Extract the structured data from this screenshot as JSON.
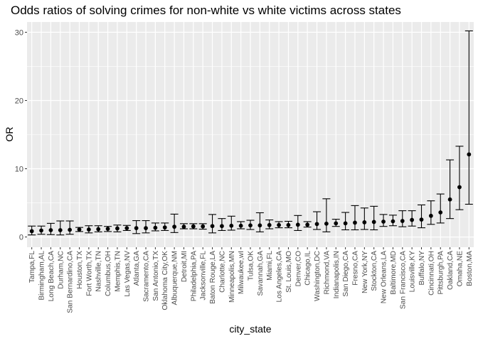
{
  "chart_data": {
    "type": "scatter",
    "subtype": "point-with-errorbars",
    "title": "Odds ratios of solving crimes for non-white vs white victims across states",
    "xlabel": "city_state",
    "ylabel": "OR",
    "ylim": [
      0,
      31.5
    ],
    "yticks": [
      0,
      10,
      20,
      30
    ],
    "grid": true,
    "legend": "none",
    "colors": {
      "panel": "#ebebeb",
      "grid_major": "#ffffff",
      "point": "#000000",
      "errorbar": "#000000"
    },
    "categories": [
      "Tampa,FL",
      "Birmingham,AL",
      "Long Beach,CA",
      "Durham,NC",
      "San Bernardino,CA",
      "Houston,TX",
      "Fort Worth,TX",
      "Nashville,TN",
      "Columbus,OH",
      "Memphis,TN",
      "Las Vegas,NV",
      "Atlanta,GA",
      "Sacramento,CA",
      "San Antonio,TX",
      "Oklahoma City,OK",
      "Albuquerque,NM",
      "Detroit,MI",
      "Philadelphia,PA",
      "Jacksonville,FL",
      "Baton Rouge,LA",
      "Charlotte,NC",
      "Minneapolis,MN",
      "Milwaukee,wI",
      "Tulsa,OK",
      "Savannah,GA",
      "Miami,FL",
      "Los Angeles,CA",
      "St. Louis,MO",
      "Denver,CO",
      "Chicago,IL",
      "Washington,DC",
      "Richmond,VA",
      "Indianapolis,IN",
      "San Diego,CA",
      "Fresno,CA",
      "New York,NY",
      "Stockton,CA",
      "New Orleans,LA",
      "Baltimore,MD",
      "San Francisco,CA",
      "Louisville,KY",
      "Buffalo,NY",
      "Cincinnati,OH",
      "Pittsburgh,PA",
      "Oakland,CA",
      "Omaha,NE",
      "Boston,MA"
    ],
    "or": [
      0.85,
      0.95,
      1.0,
      1.0,
      1.05,
      1.1,
      1.1,
      1.15,
      1.2,
      1.25,
      1.3,
      1.3,
      1.3,
      1.35,
      1.4,
      1.5,
      1.5,
      1.55,
      1.55,
      1.6,
      1.6,
      1.65,
      1.65,
      1.7,
      1.7,
      1.75,
      1.75,
      1.75,
      1.8,
      1.8,
      1.9,
      1.95,
      2.0,
      2.0,
      2.1,
      2.15,
      2.2,
      2.25,
      2.3,
      2.35,
      2.5,
      2.55,
      3.1,
      3.6,
      5.5,
      7.3,
      12.1
    ],
    "ci_low": [
      0.3,
      0.4,
      0.35,
      0.3,
      0.4,
      0.8,
      0.6,
      0.75,
      0.8,
      0.75,
      0.95,
      0.5,
      0.6,
      0.9,
      0.95,
      0.65,
      1.2,
      1.2,
      1.15,
      0.6,
      0.95,
      1.0,
      1.2,
      1.1,
      0.75,
      1.2,
      1.35,
      1.35,
      0.95,
      1.45,
      1.1,
      0.75,
      1.55,
      1.05,
      1.05,
      1.1,
      1.05,
      1.55,
      1.65,
      1.5,
      1.6,
      1.35,
      1.85,
      2.05,
      2.7,
      4.0,
      4.8
    ],
    "ci_high": [
      1.6,
      1.6,
      2.0,
      2.35,
      2.35,
      1.4,
      1.65,
      1.65,
      1.55,
      1.75,
      1.7,
      2.4,
      2.4,
      2.05,
      2.05,
      3.35,
      1.95,
      1.95,
      1.95,
      3.3,
      2.7,
      3.05,
      2.25,
      2.45,
      3.55,
      2.5,
      2.25,
      2.3,
      3.15,
      2.25,
      3.7,
      5.6,
      2.6,
      3.6,
      4.6,
      4.25,
      4.5,
      3.3,
      3.2,
      3.85,
      3.85,
      4.7,
      5.3,
      6.3,
      11.3,
      13.3,
      30.2
    ]
  }
}
